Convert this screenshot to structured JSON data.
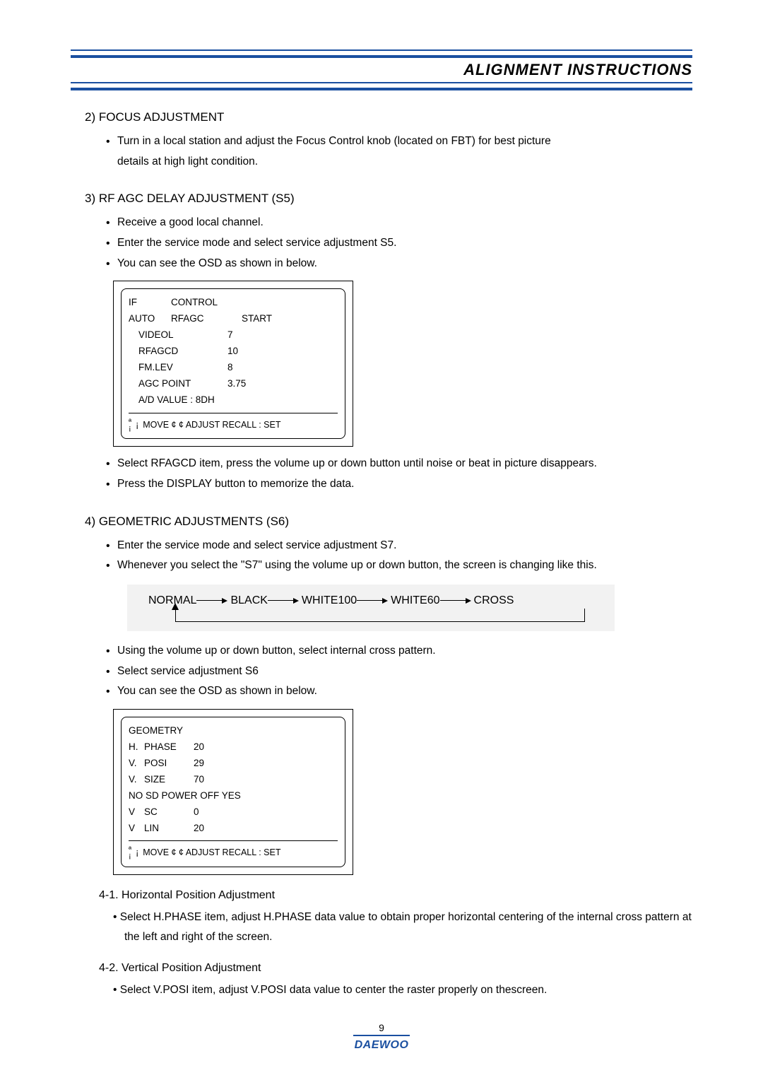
{
  "header": {
    "title": "ALIGNMENT INSTRUCTIONS"
  },
  "colors": {
    "rule": "#1a4fa0",
    "flow_bg": "#f2f2f2",
    "text": "#000000",
    "page_bg": "#ffffff"
  },
  "section2": {
    "heading": "2) FOCUS ADJUSTMENT",
    "bullets": [
      "Turn in a local station and adjust the Focus Control knob (located on FBT) for best picture details at high light condition."
    ]
  },
  "section3": {
    "heading": "3) RF AGC DELAY ADJUSTMENT (S5)",
    "bullets_top": [
      "Receive a good local channel.",
      "Enter the service mode and select service adjustment S5.",
      "You can see the OSD as shown in below."
    ],
    "osd": {
      "head": {
        "c1": "IF",
        "c2": "CONTROL"
      },
      "row1": {
        "c1": "AUTO",
        "c2": "RFAGC",
        "c3": "START"
      },
      "rows": [
        {
          "label": "VIDEOL",
          "value": "7"
        },
        {
          "label": "RFAGCD",
          "value": "10"
        },
        {
          "label": "FM.LEV",
          "value": "8"
        },
        {
          "label": "AGC POINT",
          "value": "3.75"
        },
        {
          "label": "A/D VALUE : 8DH",
          "value": ""
        }
      ],
      "footer": "MOVE   ¢  ¢   ADJUST  RECALL : SET"
    },
    "bullets_bottom": [
      "Select RFAGCD item, press the volume up or down button until noise or beat in picture disappears.",
      "Press the DISPLAY button to memorize the data."
    ]
  },
  "section4": {
    "heading": "4) GEOMETRIC ADJUSTMENTS (S6)",
    "bullets_top": [
      "Enter the service mode and select service adjustment S7.",
      "Whenever you select the \"S7\" using the volume up or down button, the screen is changing like this."
    ],
    "flow": [
      "NORMAL",
      "BLACK",
      "WHITE100",
      "WHITE60",
      "CROSS"
    ],
    "bullets_mid": [
      "Using the volume up or down button, select internal cross pattern.",
      "Select service adjustment S6",
      "You can see the OSD as shown in below."
    ],
    "osd": {
      "title": "GEOMETRY",
      "rows": [
        {
          "c1": "H.",
          "c2": "PHASE",
          "c3": "20"
        },
        {
          "c1": "V.",
          "c2": "POSI",
          "c3": "29"
        },
        {
          "c1": "V.",
          "c2": "SIZE",
          "c3": "70"
        }
      ],
      "line": "NO SD POWER OFF YES",
      "rows2": [
        {
          "c1": "V",
          "c2": "SC",
          "c3": "0"
        },
        {
          "c1": "V",
          "c2": "LIN",
          "c3": "20"
        }
      ],
      "footer": "MOVE   ¢  ¢   ADJUST  RECALL : SET"
    },
    "sub41": {
      "heading": "4-1. Horizontal Position Adjustment",
      "text": "Select H.PHASE item, adjust H.PHASE data value to obtain proper horizontal centering of the internal cross pattern at the left and right of the screen."
    },
    "sub42": {
      "heading": "4-2. Vertical Position Adjustment",
      "text": "Select V.POSI item, adjust V.POSI data value to center the raster properly on thescreen."
    }
  },
  "footer": {
    "page": "9",
    "brand": "DAEWOO"
  }
}
